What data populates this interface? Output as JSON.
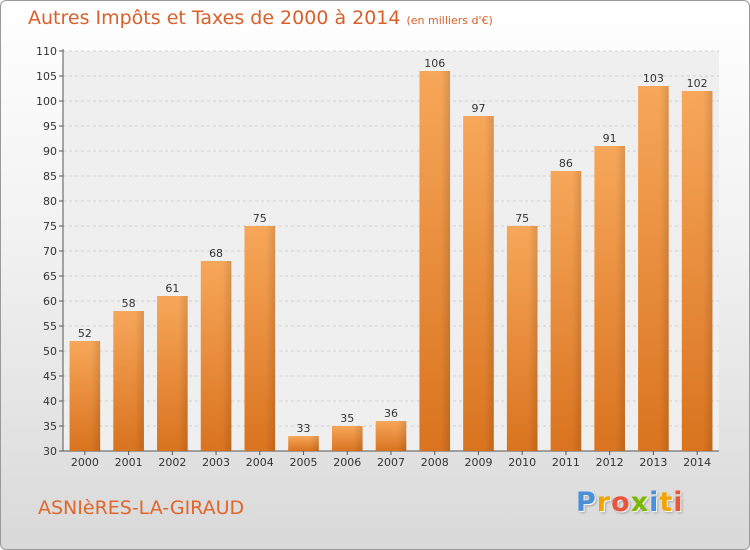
{
  "colors": {
    "bar": "#f08a2c",
    "bar_light": "#f7a75a",
    "title": "#d9602a",
    "axis": "#555555",
    "grid": "#cfcfcf"
  },
  "chart_data": {
    "type": "bar",
    "title": "Autres Impôts et Taxes de 2000 à 2014",
    "subtitle": "(en milliers d'€)",
    "categories": [
      "2000",
      "2001",
      "2002",
      "2003",
      "2004",
      "2005",
      "2006",
      "2007",
      "2008",
      "2009",
      "2010",
      "2011",
      "2012",
      "2013",
      "2014"
    ],
    "values": [
      52,
      58,
      61,
      68,
      75,
      33,
      35,
      36,
      106,
      97,
      75,
      86,
      91,
      103,
      102
    ],
    "ylim": [
      30,
      110
    ],
    "yticks": [
      30,
      35,
      40,
      45,
      50,
      55,
      60,
      65,
      70,
      75,
      80,
      85,
      90,
      95,
      100,
      105,
      110
    ],
    "grid": true,
    "xlabel": "",
    "ylabel": ""
  },
  "footer": {
    "commune": "ASNIèRES-LA-GIRAUD",
    "brand": [
      "P",
      "r",
      "o",
      "x",
      "i",
      "t",
      "i"
    ],
    "brand_colors": [
      "#4a90d9",
      "#f2a400",
      "#e8553b",
      "#7ab800",
      "#4a90d9",
      "#f2a400",
      "#e8553b"
    ]
  }
}
